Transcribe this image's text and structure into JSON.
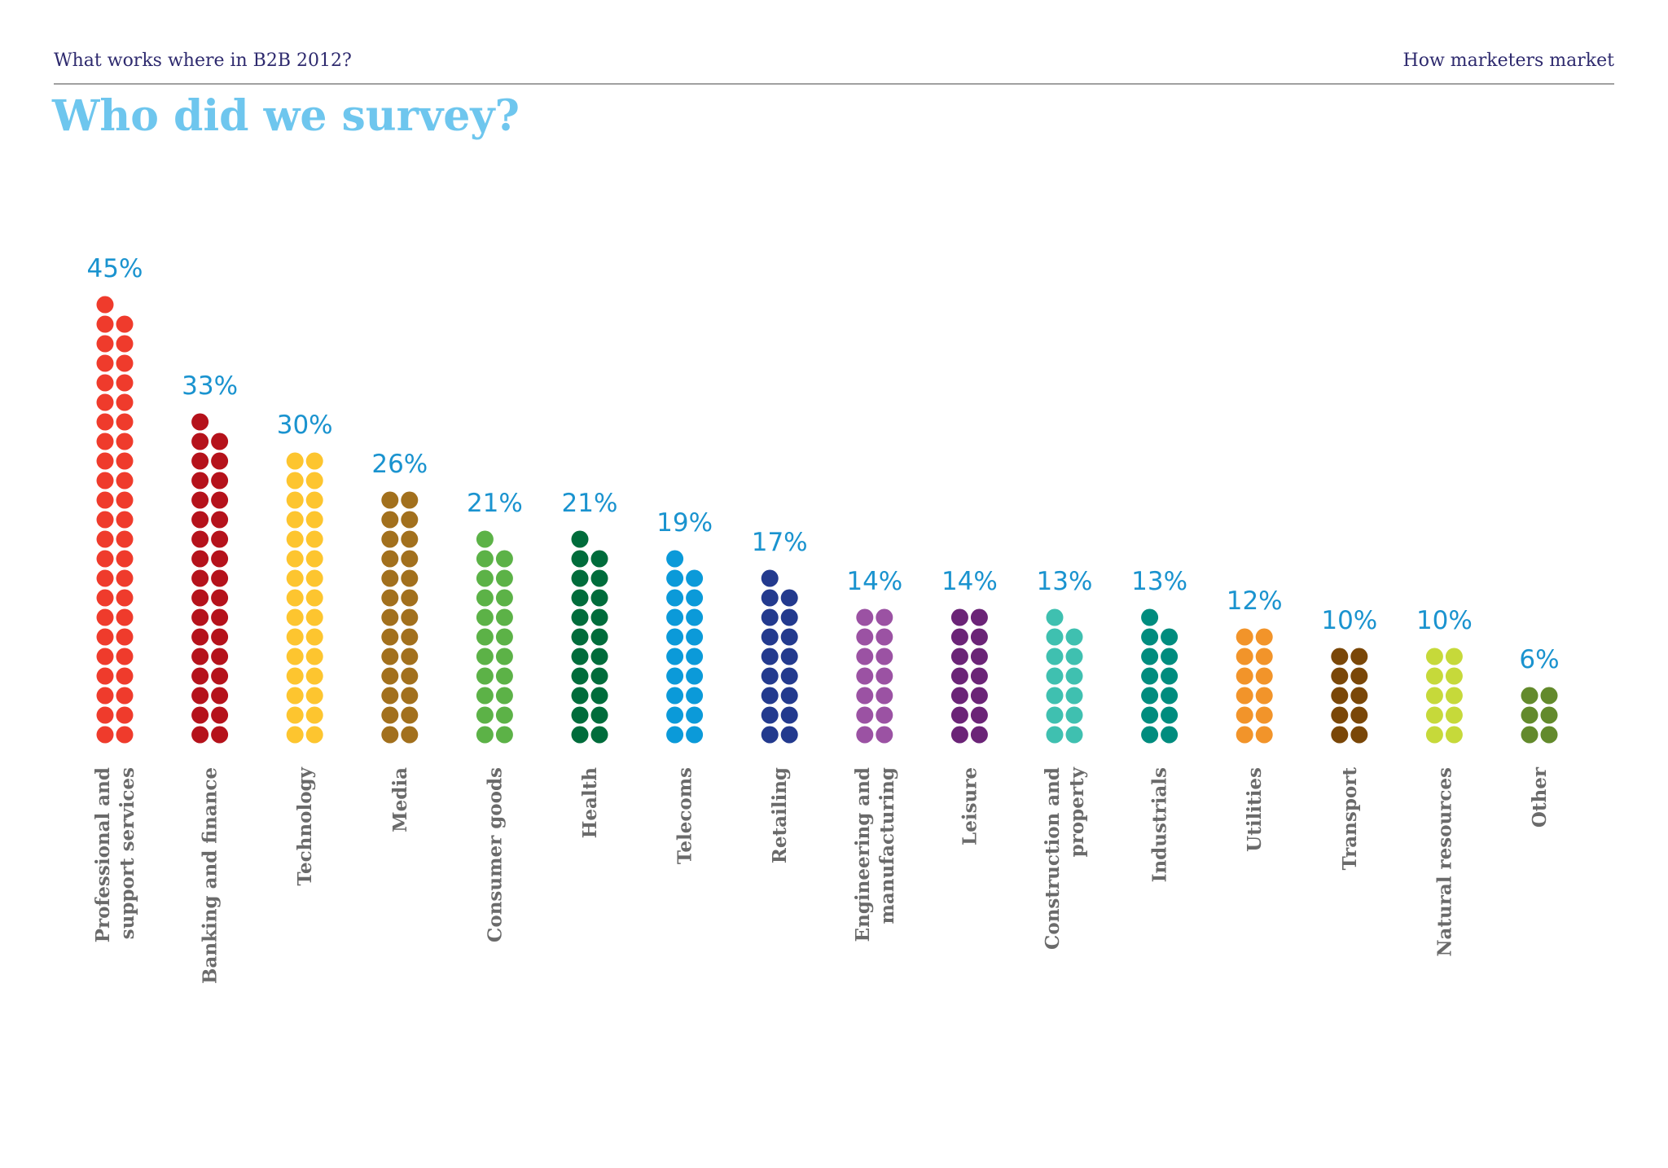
{
  "header": {
    "left": "What works where in B2B 2012?",
    "right": "How marketers market"
  },
  "page_title": "Who did we survey?",
  "chart_data": {
    "type": "bar",
    "style": "dot columns (two dots wide, each dot = 1%)",
    "value_suffix": "%",
    "categories": [
      [
        "Professional and",
        "support services"
      ],
      [
        "Banking and finance"
      ],
      [
        "Technology"
      ],
      [
        "Media"
      ],
      [
        "Consumer goods"
      ],
      [
        "Health"
      ],
      [
        "Telecoms"
      ],
      [
        "Retailing"
      ],
      [
        "Engineering and",
        "manufacturing"
      ],
      [
        "Leisure"
      ],
      [
        "Construction and",
        "property"
      ],
      [
        "Industrials"
      ],
      [
        "Utilities"
      ],
      [
        "Transport"
      ],
      [
        "Natural resources"
      ],
      [
        "Other"
      ]
    ],
    "values": [
      45,
      33,
      30,
      26,
      21,
      21,
      19,
      17,
      14,
      14,
      13,
      13,
      12,
      10,
      10,
      6
    ],
    "colors": [
      "#ef3b2c",
      "#b5121b",
      "#fdc52f",
      "#a2701d",
      "#5cb247",
      "#006c3b",
      "#0b9ad9",
      "#233a8e",
      "#9b52a3",
      "#6b2477",
      "#3fc0b0",
      "#008c7e",
      "#f2942a",
      "#7a4708",
      "#c6d93a",
      "#638a2c"
    ],
    "legend": false,
    "grid": false
  }
}
